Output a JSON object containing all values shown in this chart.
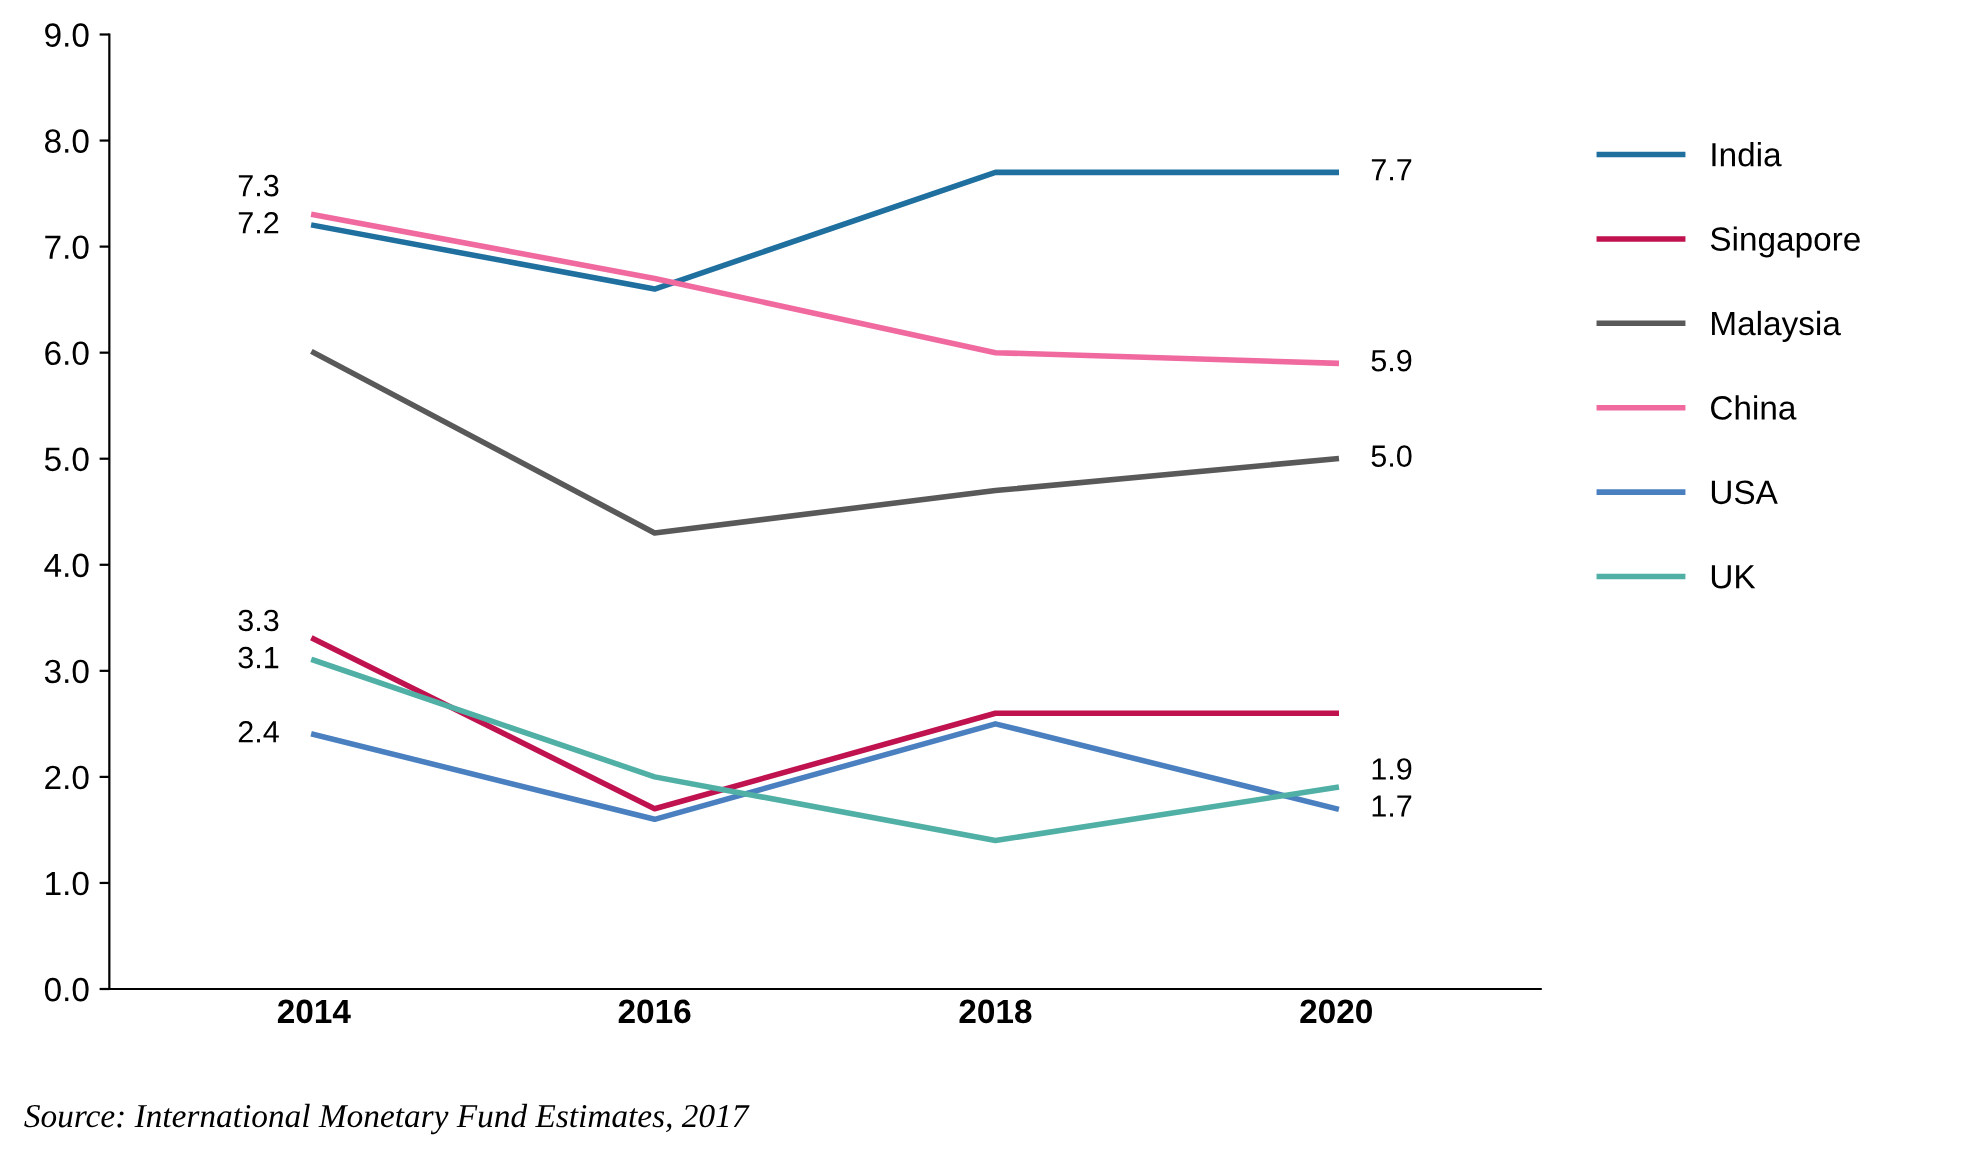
{
  "chart_data": {
    "type": "line",
    "categories": [
      "2014",
      "2016",
      "2018",
      "2020"
    ],
    "ylim": [
      0,
      9
    ],
    "yticks": [
      {
        "value": 0,
        "label": "0.0"
      },
      {
        "value": 1,
        "label": "1.0"
      },
      {
        "value": 2,
        "label": "2.0"
      },
      {
        "value": 3,
        "label": "3.0"
      },
      {
        "value": 4,
        "label": "4.0"
      },
      {
        "value": 5,
        "label": "5.0"
      },
      {
        "value": 6,
        "label": "6.0"
      },
      {
        "value": 7,
        "label": "7.0"
      },
      {
        "value": 8,
        "label": "8.0"
      },
      {
        "value": 9,
        "label": "9.0"
      }
    ],
    "grid": false,
    "legend": "right",
    "marker": "none",
    "line_style": "solid",
    "series": [
      {
        "name": "India",
        "color": "#1f6f9f",
        "values": [
          7.2,
          6.6,
          7.7,
          7.7
        ],
        "value_labels": [
          "7.2",
          null,
          null,
          "7.7"
        ]
      },
      {
        "name": "Singapore",
        "color": "#c0124f",
        "values": [
          3.3,
          1.7,
          2.6,
          2.6
        ],
        "value_labels": [
          "3.3",
          null,
          null,
          null
        ]
      },
      {
        "name": "Malaysia",
        "color": "#595959",
        "values": [
          6.0,
          4.3,
          4.7,
          5.0
        ],
        "value_labels": [
          null,
          null,
          null,
          "5.0"
        ]
      },
      {
        "name": "China",
        "color": "#f06aa0",
        "values": [
          7.3,
          6.7,
          6.0,
          5.9
        ],
        "value_labels": [
          "7.3",
          null,
          null,
          "5.9"
        ]
      },
      {
        "name": "USA",
        "color": "#4a80c0",
        "values": [
          2.4,
          1.6,
          2.5,
          1.7
        ],
        "value_labels": [
          "2.4",
          null,
          null,
          "1.7"
        ]
      },
      {
        "name": "UK",
        "color": "#50b0a5",
        "values": [
          3.1,
          2.0,
          1.4,
          1.9
        ],
        "value_labels": [
          "3.1",
          null,
          null,
          "1.9"
        ]
      }
    ],
    "annotations": [
      "Source: International Monetary Fund Estimates, 2017"
    ]
  }
}
